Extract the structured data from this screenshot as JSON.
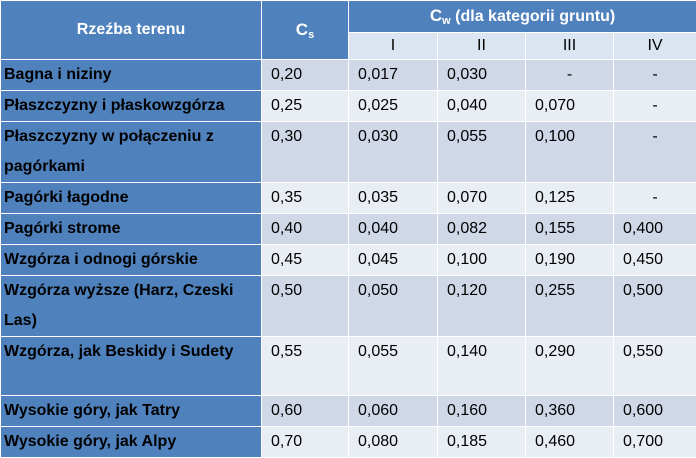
{
  "header": {
    "terrain": "Rzeźba terenu",
    "cs_main": "C",
    "cs_sub": "s",
    "cw_main": "C",
    "cw_sub": "w",
    "cw_rest": " (dla kategorii gruntu)",
    "categories": [
      "I",
      "II",
      "III",
      "IV"
    ]
  },
  "rows": [
    {
      "name": "Bagna i niziny",
      "cs": "0,20",
      "cw": [
        "0,017",
        "0,030",
        "-",
        "-"
      ]
    },
    {
      "name": "Płaszczyzny i płaskowzgórza",
      "cs": "0,25",
      "cw": [
        "0,025",
        "0,040",
        "0,070",
        "-"
      ]
    },
    {
      "name": "Płaszczyzny w połączeniu z pagórkami",
      "cs": "0,30",
      "cw": [
        "0,030",
        "0,055",
        "0,100",
        "-"
      ]
    },
    {
      "name": "Pagórki łagodne",
      "cs": "0,35",
      "cw": [
        "0,035",
        "0,070",
        "0,125",
        "-"
      ]
    },
    {
      "name": "Pagórki strome",
      "cs": "0,40",
      "cw": [
        "0,040",
        "0,082",
        "0,155",
        "0,400"
      ]
    },
    {
      "name": "Wzgórza i odnogi górskie",
      "cs": "0,45",
      "cw": [
        "0,045",
        "0,100",
        "0,190",
        "0,450"
      ]
    },
    {
      "name": "Wzgórza wyższe (Harz, Czeski Las)",
      "cs": "0,50",
      "cw": [
        "0,050",
        "0,120",
        "0,255",
        "0,500"
      ]
    },
    {
      "name": "Wzgórza, jak Beskidy i Sudety",
      "cs": "0,55",
      "cw": [
        "0,055",
        "0,140",
        "0,290",
        "0,550"
      ]
    },
    {
      "name": "Wysokie góry, jak Tatry",
      "cs": "0,60",
      "cw": [
        "0,060",
        "0,160",
        "0,360",
        "0,600"
      ]
    },
    {
      "name": "Wysokie góry, jak Alpy",
      "cs": "0,70",
      "cw": [
        "0,080",
        "0,185",
        "0,460",
        "0,700"
      ]
    }
  ],
  "colors": {
    "header_blue": "#4f81bd",
    "row_dark": "#d0d8e8",
    "row_light": "#e9edf4",
    "subheader": "#dbe5f1"
  }
}
